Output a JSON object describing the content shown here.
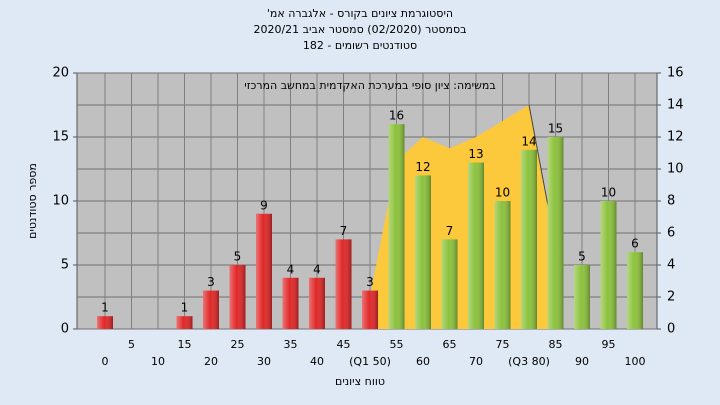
{
  "chart_data": {
    "type": "bar",
    "title": [
      "היסטוגרמת ציונים בקורס - אלגברה אמ'",
      "בסמסטר (02/2020) סמסטר אביב 2020/21",
      "סטודנטים רשומים - 182"
    ],
    "annotation": "במשימה: ציון סופי במערכת האקדמית במחשב המרכזי",
    "xlabel": "טווח ציונים",
    "ylabel": "מספר סטודנטים",
    "categories": [
      "0",
      "5",
      "10",
      "15",
      "20",
      "25",
      "30",
      "35",
      "40",
      "45",
      "(Q1 50)",
      "55",
      "60",
      "65",
      "70",
      "75",
      "(Q3 80)",
      "85",
      "90",
      "95",
      "100"
    ],
    "values": [
      1,
      0,
      0,
      1,
      3,
      5,
      9,
      4,
      4,
      7,
      3,
      16,
      12,
      7,
      13,
      10,
      14,
      15,
      5,
      10,
      6
    ],
    "colors": [
      "#e02828",
      "#e02828",
      "#e02828",
      "#e02828",
      "#e02828",
      "#e02828",
      "#e02828",
      "#e02828",
      "#e02828",
      "#e02828",
      "#e02828",
      "#8cc23c",
      "#8cc23c",
      "#8cc23c",
      "#8cc23c",
      "#8cc23c",
      "#8cc23c",
      "#8cc23c",
      "#8cc23c",
      "#8cc23c",
      "#8cc23c"
    ],
    "ylim": [
      0,
      20
    ],
    "yticks": [
      0,
      5,
      10,
      15,
      20
    ],
    "y2lim": [
      0,
      16
    ],
    "y2ticks": [
      0,
      2,
      4,
      6,
      8,
      10,
      12,
      14,
      16
    ],
    "area": {
      "type": "area",
      "axis": "y2",
      "color": "#fcc83c",
      "x": [
        50,
        55,
        60,
        65,
        70,
        75,
        80,
        85
      ],
      "values": [
        2,
        10.5,
        12,
        11.3,
        12,
        13,
        14,
        5.2
      ]
    },
    "grid": true
  }
}
